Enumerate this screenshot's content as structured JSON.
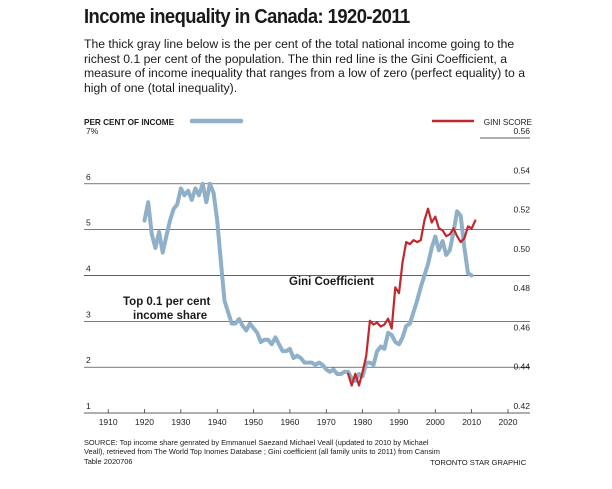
{
  "header": {
    "title": "Income inequality in Canada: 1920-2011",
    "intro": "The thick gray line below is the per cent of the total national income going to the richest 0.1 per cent of the population. The thin red line is the Gini Coefficient, a measure of income inequality that ranges from a low of zero (perfect equality) to a high of one (total inequality)."
  },
  "footer": {
    "source": "SOURCE: Top income share genrated by Emmanuel Saezand Michael Veall (updated to 2010 by Michael Veall), retrieved from The World Top Inomes Database ; Gini coefficient (all family units to 2011) from Cansim Table 2020706",
    "credit": "TORONTO STAR GRAPHIC"
  },
  "chart_data": {
    "type": "line",
    "left_axis": {
      "label": "PER CENT OF INCOME",
      "range": [
        1,
        7
      ],
      "ticks": [
        "1",
        "2",
        "3",
        "4",
        "5",
        "6",
        "7%"
      ]
    },
    "right_axis": {
      "label": "GINI SCORE",
      "range": [
        0.42,
        0.56
      ],
      "ticks": [
        "0.42",
        "0.44",
        "0.46",
        "0.48",
        "0.50",
        "0.52",
        "0.54",
        "0.56"
      ]
    },
    "x_axis": {
      "range": [
        1905,
        2020
      ],
      "ticks": [
        "1910",
        "1920",
        "1930",
        "1940",
        "1950",
        "1960",
        "1970",
        "1980",
        "1990",
        "2000",
        "2010",
        "2020"
      ]
    },
    "grid": "horizontal",
    "annotations": [
      "Top 0.1 per cent income share",
      "Gini Coefficient"
    ],
    "series": [
      {
        "name": "PER CENT OF INCOME",
        "axis": "left",
        "color": "#8fb0c8",
        "points": [
          [
            1920,
            5.2
          ],
          [
            1921,
            5.6
          ],
          [
            1922,
            4.9
          ],
          [
            1923,
            4.6
          ],
          [
            1924,
            4.95
          ],
          [
            1925,
            4.5
          ],
          [
            1926,
            4.85
          ],
          [
            1927,
            5.2
          ],
          [
            1928,
            5.45
          ],
          [
            1929,
            5.55
          ],
          [
            1930,
            5.9
          ],
          [
            1931,
            5.75
          ],
          [
            1932,
            5.85
          ],
          [
            1933,
            5.65
          ],
          [
            1934,
            5.9
          ],
          [
            1935,
            5.75
          ],
          [
            1936,
            6.0
          ],
          [
            1937,
            5.6
          ],
          [
            1938,
            6.0
          ],
          [
            1939,
            5.8
          ],
          [
            1940,
            5.2
          ],
          [
            1941,
            4.3
          ],
          [
            1942,
            3.45
          ],
          [
            1943,
            3.2
          ],
          [
            1944,
            2.95
          ],
          [
            1945,
            2.95
          ],
          [
            1946,
            3.05
          ],
          [
            1947,
            2.9
          ],
          [
            1948,
            2.8
          ],
          [
            1949,
            2.95
          ],
          [
            1950,
            2.85
          ],
          [
            1951,
            2.75
          ],
          [
            1952,
            2.55
          ],
          [
            1953,
            2.6
          ],
          [
            1954,
            2.6
          ],
          [
            1955,
            2.5
          ],
          [
            1956,
            2.65
          ],
          [
            1957,
            2.5
          ],
          [
            1958,
            2.35
          ],
          [
            1959,
            2.35
          ],
          [
            1960,
            2.4
          ],
          [
            1961,
            2.2
          ],
          [
            1962,
            2.25
          ],
          [
            1963,
            2.2
          ],
          [
            1964,
            2.1
          ],
          [
            1965,
            2.1
          ],
          [
            1966,
            2.1
          ],
          [
            1967,
            2.05
          ],
          [
            1968,
            2.1
          ],
          [
            1969,
            2.05
          ],
          [
            1970,
            1.95
          ],
          [
            1971,
            1.9
          ],
          [
            1972,
            1.95
          ],
          [
            1973,
            1.85
          ],
          [
            1974,
            1.85
          ],
          [
            1975,
            1.9
          ],
          [
            1976,
            1.9
          ],
          [
            1977,
            1.75
          ],
          [
            1978,
            1.7
          ],
          [
            1979,
            1.85
          ],
          [
            1980,
            1.8
          ],
          [
            1981,
            2.1
          ],
          [
            1982,
            2.1
          ],
          [
            1983,
            2.05
          ],
          [
            1984,
            2.35
          ],
          [
            1985,
            2.45
          ],
          [
            1986,
            2.4
          ],
          [
            1987,
            2.75
          ],
          [
            1988,
            2.7
          ],
          [
            1989,
            2.55
          ],
          [
            1990,
            2.5
          ],
          [
            1991,
            2.65
          ],
          [
            1992,
            2.9
          ],
          [
            1993,
            2.95
          ],
          [
            1994,
            3.2
          ],
          [
            1995,
            3.45
          ],
          [
            1996,
            3.75
          ],
          [
            1997,
            4.0
          ],
          [
            1998,
            4.25
          ],
          [
            1999,
            4.6
          ],
          [
            2000,
            4.85
          ],
          [
            2001,
            4.55
          ],
          [
            2002,
            4.75
          ],
          [
            2003,
            4.45
          ],
          [
            2004,
            4.55
          ],
          [
            2005,
            4.95
          ],
          [
            2006,
            5.4
          ],
          [
            2007,
            5.3
          ],
          [
            2008,
            4.6
          ],
          [
            2009,
            4.05
          ],
          [
            2010,
            4.0
          ]
        ]
      },
      {
        "name": "GINI SCORE",
        "axis": "right",
        "color": "#c0282d",
        "points": [
          [
            1976,
            0.44
          ],
          [
            1977,
            0.434
          ],
          [
            1978,
            0.44
          ],
          [
            1979,
            0.434
          ],
          [
            1980,
            0.441
          ],
          [
            1981,
            0.449
          ],
          [
            1982,
            0.467
          ],
          [
            1983,
            0.465
          ],
          [
            1984,
            0.466
          ],
          [
            1985,
            0.464
          ],
          [
            1986,
            0.465
          ],
          [
            1987,
            0.468
          ],
          [
            1988,
            0.463
          ],
          [
            1989,
            0.484
          ],
          [
            1990,
            0.481
          ],
          [
            1991,
            0.497
          ],
          [
            1992,
            0.507
          ],
          [
            1993,
            0.506
          ],
          [
            1994,
            0.508
          ],
          [
            1995,
            0.507
          ],
          [
            1996,
            0.508
          ],
          [
            1997,
            0.518
          ],
          [
            1998,
            0.524
          ],
          [
            1999,
            0.517
          ],
          [
            2000,
            0.52
          ],
          [
            2001,
            0.514
          ],
          [
            2002,
            0.513
          ],
          [
            2003,
            0.51
          ],
          [
            2004,
            0.511
          ],
          [
            2005,
            0.514
          ],
          [
            2006,
            0.51
          ],
          [
            2007,
            0.507
          ],
          [
            2008,
            0.509
          ],
          [
            2009,
            0.515
          ],
          [
            2010,
            0.514
          ],
          [
            2011,
            0.518
          ]
        ]
      }
    ]
  }
}
